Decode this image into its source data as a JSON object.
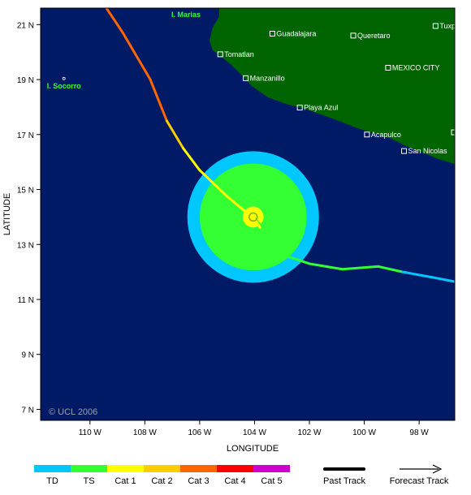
{
  "map": {
    "xlabel": "LONGITUDE",
    "ylabel": "LATITUDE",
    "copyright": "© UCL 2006",
    "x_ticks": [
      {
        "value": -110,
        "label": "110 W"
      },
      {
        "value": -108,
        "label": "108 W"
      },
      {
        "value": -106,
        "label": "106 W"
      },
      {
        "value": -104,
        "label": "104 W"
      },
      {
        "value": -102,
        "label": "102 W"
      },
      {
        "value": -100,
        "label": "100 W"
      },
      {
        "value": -98,
        "label": "98 W"
      }
    ],
    "y_ticks": [
      {
        "value": 21,
        "label": "21 N"
      },
      {
        "value": 19,
        "label": "19 N"
      },
      {
        "value": 17,
        "label": "17 N"
      },
      {
        "value": 15,
        "label": "15 N"
      },
      {
        "value": 13,
        "label": "13 N"
      },
      {
        "value": 11,
        "label": "11 N"
      },
      {
        "value": 9,
        "label": "9 N"
      },
      {
        "value": 7,
        "label": "7 N"
      }
    ],
    "lon_range": [
      -111.8,
      -96.7
    ],
    "lat_range": [
      6.6,
      21.6
    ],
    "colors": {
      "ocean": "#001a66",
      "land": "#006400",
      "TD": "#00c8ff",
      "TS": "#33ff33",
      "Cat 1": "#ffff00",
      "Cat 2": "#ffcc00",
      "Cat 3": "#ff6600",
      "Cat 4": "#ff0000",
      "Cat 5": "#cc00cc"
    },
    "cities": [
      {
        "name": "Guadalajara",
        "lon": -103.35,
        "lat": 20.67
      },
      {
        "name": "Queretaro",
        "lon": -100.4,
        "lat": 20.6
      },
      {
        "name": "Tuxpan",
        "lon": -97.4,
        "lat": 20.95
      },
      {
        "name": "Tomatlan",
        "lon": -105.25,
        "lat": 19.92
      },
      {
        "name": "MEXICO CITY",
        "lon": -99.13,
        "lat": 19.43
      },
      {
        "name": "Manzanillo",
        "lon": -104.32,
        "lat": 19.05
      },
      {
        "name": "Playa Azul",
        "lon": -102.35,
        "lat": 17.98
      },
      {
        "name": "Acapulco",
        "lon": -99.9,
        "lat": 17.0
      },
      {
        "name": "Oaxaca",
        "lon": -96.73,
        "lat": 17.08
      },
      {
        "name": "San Nicolas",
        "lon": -98.55,
        "lat": 16.4
      }
    ],
    "islands": [
      {
        "name": "I. Marias",
        "lon": -106.5,
        "lat": 21.4
      },
      {
        "name": "I. Socorro",
        "lon": -110.95,
        "lat": 18.8
      }
    ],
    "storm": {
      "center": {
        "lon": -104.05,
        "lat": 14.0
      },
      "ts_radius_deg": 1.95,
      "td_radius_deg": 2.4,
      "eye_radius_deg": 0.38
    },
    "past_track": [
      {
        "lon": -109.4,
        "lat": 21.6,
        "cat": "Cat 3"
      },
      {
        "lon": -108.8,
        "lat": 20.7,
        "cat": "Cat 3"
      },
      {
        "lon": -107.8,
        "lat": 19.0,
        "cat": "Cat 3"
      },
      {
        "lon": -107.2,
        "lat": 17.5,
        "cat": "Cat 3"
      },
      {
        "lon": -106.6,
        "lat": 16.5,
        "cat": "Cat 2"
      },
      {
        "lon": -106.0,
        "lat": 15.7,
        "cat": "Cat 1"
      },
      {
        "lon": -105.0,
        "lat": 14.75,
        "cat": "Cat 1"
      },
      {
        "lon": -104.4,
        "lat": 14.25,
        "cat": "Cat 1"
      },
      {
        "lon": -104.05,
        "lat": 14.0,
        "cat": "Cat 1"
      },
      {
        "lon": -103.8,
        "lat": 13.62,
        "cat": "Cat 1"
      }
    ],
    "forecast_track": [
      {
        "lon": -104.05,
        "lat": 14.0,
        "cat": "TS"
      },
      {
        "lon": -103.4,
        "lat": 13.3,
        "cat": "TS"
      },
      {
        "lon": -102.9,
        "lat": 12.6,
        "cat": "TS"
      },
      {
        "lon": -102.0,
        "lat": 12.3,
        "cat": "TS"
      },
      {
        "lon": -100.8,
        "lat": 12.1,
        "cat": "TS"
      },
      {
        "lon": -99.5,
        "lat": 12.2,
        "cat": "TS"
      },
      {
        "lon": -98.6,
        "lat": 12.0,
        "cat": "TS"
      },
      {
        "lon": -97.5,
        "lat": 11.8,
        "cat": "TD"
      },
      {
        "lon": -96.7,
        "lat": 11.65,
        "cat": "TD"
      }
    ]
  },
  "legend": {
    "categories": [
      "TD",
      "TS",
      "Cat 1",
      "Cat 2",
      "Cat 3",
      "Cat 4",
      "Cat 5"
    ],
    "past_track_label": "Past Track",
    "forecast_track_label": "Forecast Track"
  }
}
